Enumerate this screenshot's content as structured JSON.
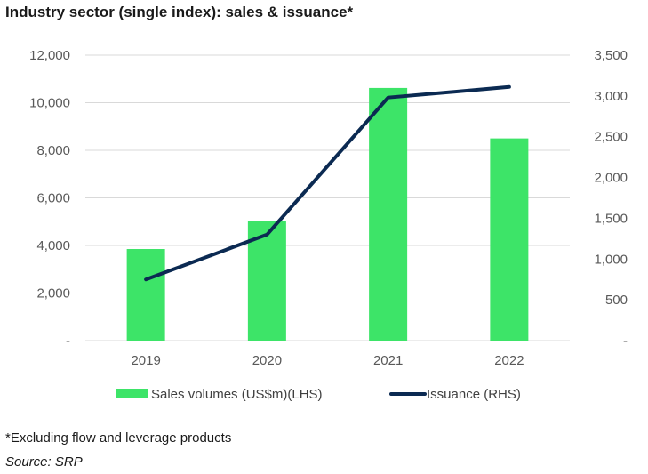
{
  "title": "Industry sector (single index): sales & issuance*",
  "footnote": "*Excluding flow and leverage products",
  "source": "Source: SRP",
  "chart_data": {
    "type": "bar",
    "categories": [
      "2019",
      "2020",
      "2021",
      "2022"
    ],
    "series": [
      {
        "name": "Sales volumes (US$m)(LHS)",
        "type": "bar",
        "axis": "left",
        "values": [
          3850,
          5030,
          10620,
          8500
        ],
        "color": "#3de468"
      },
      {
        "name": "Issuance (RHS)",
        "type": "line",
        "axis": "right",
        "values": [
          750,
          1300,
          2980,
          3110
        ],
        "color": "#0b2a52"
      }
    ],
    "y_left": {
      "ylim": [
        0,
        12000
      ],
      "ticks": [
        0,
        2000,
        4000,
        6000,
        8000,
        10000,
        12000
      ],
      "tick_labels": [
        "-",
        "2,000",
        "4,000",
        "6,000",
        "8,000",
        "10,000",
        "12,000"
      ]
    },
    "y_right": {
      "ylim": [
        0,
        3500
      ],
      "ticks": [
        0,
        500,
        1000,
        1500,
        2000,
        2500,
        3000,
        3500
      ],
      "tick_labels": [
        "-",
        "500",
        "1,000",
        "1,500",
        "2,000",
        "2,500",
        "3,000",
        "3,500"
      ]
    },
    "grid": true,
    "legend": "bottom"
  }
}
